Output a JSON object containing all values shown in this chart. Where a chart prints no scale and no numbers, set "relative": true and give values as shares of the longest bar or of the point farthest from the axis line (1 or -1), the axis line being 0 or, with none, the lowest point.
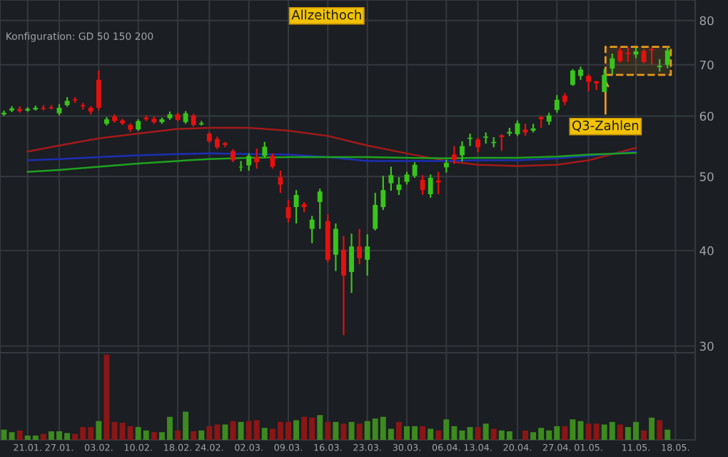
{
  "chart_data": [
    {
      "type": "candlestick",
      "categories": [
        null,
        null,
        null,
        "21.01.",
        null,
        null,
        null,
        "27.01.",
        null,
        null,
        null,
        null,
        "03.02.",
        null,
        null,
        null,
        null,
        "10.02.",
        null,
        null,
        null,
        null,
        "18.02.",
        null,
        null,
        null,
        "24.02.",
        null,
        null,
        null,
        null,
        "02.03.",
        null,
        null,
        null,
        null,
        "09.03.",
        null,
        null,
        null,
        null,
        "16.03.",
        null,
        null,
        null,
        null,
        "23.03.",
        null,
        null,
        null,
        null,
        "30.03.",
        null,
        null,
        null,
        null,
        "06.04.",
        null,
        null,
        null,
        "13.04.",
        null,
        null,
        null,
        null,
        "20.04.",
        null,
        null,
        null,
        null,
        "27.04.",
        null,
        null,
        null,
        "01.05.",
        null,
        null,
        null,
        null,
        null,
        "11.05.",
        null,
        null,
        null,
        null,
        "18.05.",
        null,
        null
      ],
      "ohlc": [
        [
          60.3,
          61.0,
          60.0,
          60.6
        ],
        [
          61.0,
          61.8,
          60.7,
          61.4
        ],
        [
          61.3,
          61.8,
          60.6,
          60.9
        ],
        [
          61.0,
          61.6,
          60.8,
          61.3
        ],
        [
          61.2,
          61.9,
          61.0,
          61.5
        ],
        [
          61.5,
          62.0,
          61.0,
          61.3
        ],
        [
          61.6,
          62.0,
          61.2,
          61.4
        ],
        [
          60.5,
          62.2,
          60.1,
          61.5
        ],
        [
          62.0,
          63.5,
          61.7,
          62.8
        ],
        [
          63.1,
          63.5,
          62.4,
          62.9
        ],
        [
          62.0,
          62.4,
          61.2,
          61.8
        ],
        [
          61.5,
          61.8,
          60.3,
          60.8
        ],
        [
          66.9,
          68.8,
          61.0,
          61.5
        ],
        [
          58.6,
          59.8,
          58.3,
          59.4
        ],
        [
          59.9,
          60.3,
          58.8,
          59.1
        ],
        [
          59.2,
          59.5,
          58.4,
          58.7
        ],
        [
          58.4,
          58.7,
          57.2,
          57.6
        ],
        [
          57.6,
          59.4,
          57.4,
          59.1
        ],
        [
          59.7,
          60.1,
          59.1,
          59.4
        ],
        [
          59.5,
          59.9,
          58.6,
          58.9
        ],
        [
          58.9,
          59.7,
          58.6,
          59.4
        ],
        [
          59.6,
          60.8,
          59.3,
          60.3
        ],
        [
          60.3,
          60.6,
          59.0,
          59.3
        ],
        [
          58.9,
          60.9,
          58.6,
          60.5
        ],
        [
          60.1,
          60.4,
          58.1,
          58.4
        ],
        [
          58.5,
          59.1,
          58.3,
          58.7
        ],
        [
          56.9,
          57.2,
          55.3,
          55.6
        ],
        [
          56.0,
          56.4,
          54.3,
          54.6
        ],
        [
          55.3,
          55.5,
          54.6,
          55.0
        ],
        [
          54.0,
          54.3,
          52.2,
          52.5
        ],
        [
          51.4,
          52.4,
          50.8,
          51.5
        ],
        [
          51.7,
          53.6,
          50.9,
          53.2
        ],
        [
          53.0,
          54.4,
          51.2,
          52.2
        ],
        [
          53.2,
          55.5,
          52.9,
          54.7
        ],
        [
          53.2,
          53.6,
          51.2,
          51.5
        ],
        [
          49.9,
          50.9,
          47.6,
          48.8
        ],
        [
          45.6,
          46.6,
          43.5,
          44.1
        ],
        [
          45.6,
          48.0,
          43.4,
          47.3
        ],
        [
          46.0,
          46.3,
          44.9,
          45.6
        ],
        [
          42.7,
          44.4,
          40.9,
          43.9
        ],
        [
          46.3,
          48.2,
          42.7,
          47.8
        ],
        [
          43.7,
          44.6,
          38.6,
          38.9
        ],
        [
          39.5,
          43.4,
          37.6,
          42.7
        ],
        [
          40.1,
          41.8,
          31.0,
          37.1
        ],
        [
          37.5,
          42.1,
          35.2,
          40.5
        ],
        [
          40.5,
          42.7,
          38.4,
          39.1
        ],
        [
          38.9,
          42.0,
          37.1,
          40.5
        ],
        [
          42.7,
          47.6,
          42.5,
          45.9
        ],
        [
          45.6,
          50.1,
          45.2,
          48.0
        ],
        [
          49.0,
          51.5,
          47.9,
          50.2
        ],
        [
          48.0,
          49.9,
          47.3,
          48.8
        ],
        [
          49.2,
          50.7,
          48.8,
          50.3
        ],
        [
          50.1,
          52.2,
          49.8,
          51.8
        ],
        [
          49.5,
          50.2,
          47.3,
          48.0
        ],
        [
          47.4,
          50.3,
          46.9,
          49.8
        ],
        [
          49.4,
          50.7,
          47.4,
          49.1
        ],
        [
          51.4,
          52.6,
          50.6,
          52.1
        ],
        [
          53.4,
          54.8,
          51.9,
          52.6
        ],
        [
          53.3,
          55.6,
          52.3,
          54.8
        ],
        [
          56.0,
          56.9,
          54.8,
          56.2
        ],
        [
          55.9,
          56.2,
          53.8,
          54.6
        ],
        [
          56.2,
          57.1,
          55.2,
          56.4
        ],
        [
          55.3,
          56.3,
          54.6,
          55.5
        ],
        [
          56.6,
          56.8,
          54.0,
          56.3
        ],
        [
          56.9,
          57.9,
          56.5,
          57.2
        ],
        [
          56.8,
          59.2,
          56.5,
          58.7
        ],
        [
          57.6,
          58.6,
          56.5,
          57.1
        ],
        [
          57.4,
          58.6,
          57.1,
          57.8
        ],
        [
          59.8,
          60.0,
          57.9,
          59.4
        ],
        [
          59.0,
          60.6,
          58.4,
          60.1
        ],
        [
          61.1,
          63.9,
          60.6,
          63.0
        ],
        [
          63.8,
          64.3,
          62.0,
          62.6
        ],
        [
          65.9,
          69.1,
          65.7,
          68.8
        ],
        [
          67.7,
          69.6,
          66.9,
          69.0
        ],
        [
          67.7,
          68.0,
          64.6,
          66.5
        ],
        [
          66.6,
          66.7,
          64.9,
          66.2
        ],
        [
          64.5,
          69.1,
          64.5,
          67.9
        ],
        [
          69.2,
          72.4,
          68.0,
          71.4
        ],
        [
          73.1,
          73.7,
          70.5,
          70.8
        ],
        [
          72.6,
          73.7,
          70.6,
          72.3
        ],
        [
          72.2,
          73.7,
          71.4,
          72.9
        ],
        [
          73.0,
          73.4,
          70.3,
          70.6
        ],
        [
          73.4,
          73.7,
          70.0,
          73.1
        ],
        [
          69.5,
          71.2,
          68.6,
          69.8
        ],
        [
          70.0,
          73.9,
          69.3,
          73.1
        ],
        null,
        null,
        null
      ],
      "colors": [
        "#39c41b",
        "#39c41b",
        "#e3110f",
        "#39c41b",
        "#39c41b",
        "#e3110f",
        "#e3110f",
        "#39c41b",
        "#39c41b",
        "#e3110f",
        "#e3110f",
        "#e3110f",
        "#e3110f",
        "#39c41b",
        "#e3110f",
        "#e3110f",
        "#e3110f",
        "#39c41b",
        "#e3110f",
        "#e3110f",
        "#39c41b",
        "#39c41b",
        "#e3110f",
        "#39c41b",
        "#e3110f",
        "#39c41b",
        "#e3110f",
        "#e3110f",
        "#e3110f",
        "#e3110f",
        "#39c41b",
        "#39c41b",
        "#e3110f",
        "#39c41b",
        "#e3110f",
        "#e3110f",
        "#e3110f",
        "#39c41b",
        "#e3110f",
        "#39c41b",
        "#39c41b",
        "#e3110f",
        "#39c41b",
        "#e3110f",
        "#39c41b",
        "#e3110f",
        "#39c41b",
        "#39c41b",
        "#39c41b",
        "#39c41b",
        "#39c41b",
        "#39c41b",
        "#39c41b",
        "#e3110f",
        "#39c41b",
        "#e3110f",
        "#39c41b",
        "#e3110f",
        "#39c41b",
        "#39c41b",
        "#e3110f",
        "#39c41b",
        "#39c41b",
        "#e3110f",
        "#39c41b",
        "#39c41b",
        "#e3110f",
        "#39c41b",
        "#e3110f",
        "#39c41b",
        "#39c41b",
        "#e3110f",
        "#39c41b",
        "#39c41b",
        "#e3110f",
        "#e3110f",
        "#39c41b",
        "#39c41b",
        "#e3110f",
        "#e3110f",
        "#39c41b",
        "#e3110f",
        "#e3110f",
        "#39c41b",
        "#39c41b",
        null,
        null,
        null
      ],
      "series": [
        {
          "type": "line",
          "color": "#a31a1a",
          "x": [
            "21.01.",
            "27.01.",
            "03.02.",
            "10.02.",
            "18.02.",
            "24.02.",
            "02.03.",
            "09.03.",
            "16.03.",
            "23.03.",
            "30.03.",
            "06.04.",
            "13.04.",
            "20.04.",
            "27.04.",
            "01.05.",
            "11.05."
          ],
          "values": [
            53.9,
            54.9,
            56.1,
            56.9,
            57.7,
            57.9,
            57.9,
            57.4,
            56.5,
            54.9,
            53.6,
            52.4,
            51.8,
            51.6,
            51.8,
            52.5,
            54.5
          ]
        },
        {
          "type": "line",
          "color": "#1c2fb4",
          "x": [
            "21.01.",
            "27.01.",
            "03.02.",
            "10.02.",
            "18.02.",
            "24.02.",
            "02.03.",
            "09.03.",
            "16.03.",
            "23.03.",
            "30.03.",
            "06.04.",
            "13.04.",
            "20.04.",
            "27.04.",
            "01.05.",
            "11.05."
          ],
          "values": [
            52.5,
            52.7,
            53.0,
            53.3,
            53.5,
            53.6,
            53.5,
            53.4,
            53.0,
            52.4,
            52.4,
            52.4,
            52.5,
            52.5,
            52.8,
            53.2,
            53.9
          ]
        },
        {
          "type": "line",
          "color": "#1fa31f",
          "x": [
            "21.01.",
            "27.01.",
            "03.02.",
            "10.02.",
            "18.02.",
            "24.02.",
            "02.03.",
            "09.03.",
            "16.03.",
            "23.03.",
            "30.03.",
            "06.04.",
            "13.04.",
            "20.04.",
            "27.04.",
            "01.05.",
            "11.05."
          ],
          "values": [
            50.7,
            51.0,
            51.5,
            52.0,
            52.4,
            52.7,
            52.9,
            53.0,
            53.0,
            53.0,
            52.9,
            52.8,
            52.9,
            52.9,
            53.1,
            53.4,
            53.7
          ]
        }
      ],
      "log": "y",
      "ylim": [
        29.4,
        85.1
      ],
      "yticks": [
        30,
        40,
        50,
        60,
        70,
        80
      ],
      "tick_labels": "y",
      "grid": true,
      "bands": [
        {
          "axis": "y",
          "from": 67.9,
          "to": 73.9,
          "color": "#e89a1c"
        }
      ],
      "annotations": [
        "Konfiguration: GD 50 150 200",
        "Allzeithoch",
        "Q3-Zahlen"
      ]
    },
    {
      "type": "bar",
      "relative": true,
      "categories": [
        null,
        null,
        null,
        "21.01.",
        null,
        null,
        null,
        "27.01.",
        null,
        null,
        null,
        null,
        "03.02.",
        null,
        null,
        null,
        null,
        "10.02.",
        null,
        null,
        null,
        null,
        "18.02.",
        null,
        null,
        null,
        "24.02.",
        null,
        null,
        null,
        null,
        "02.03.",
        null,
        null,
        null,
        null,
        "09.03.",
        null,
        null,
        null,
        null,
        "16.03.",
        null,
        null,
        null,
        null,
        "23.03.",
        null,
        null,
        null,
        null,
        "30.03.",
        null,
        null,
        null,
        null,
        "06.04.",
        null,
        null,
        null,
        "13.04.",
        null,
        null,
        null,
        null,
        "20.04.",
        null,
        null,
        null,
        null,
        "27.04.",
        null,
        null,
        null,
        "01.05.",
        null,
        null,
        null,
        null,
        null,
        "11.05.",
        null,
        null,
        null,
        null,
        "18.05.",
        null,
        null
      ],
      "values": [
        0.12,
        0.09,
        0.11,
        0.05,
        0.05,
        0.07,
        0.1,
        0.1,
        0.08,
        0.07,
        0.15,
        0.15,
        0.22,
        1,
        0.21,
        0.2,
        0.16,
        0.15,
        0.11,
        0.09,
        0.09,
        0.27,
        0.11,
        0.33,
        0.1,
        0.11,
        0.16,
        0.18,
        0.18,
        0.22,
        0.21,
        0.22,
        0.23,
        0.14,
        0.13,
        0.21,
        0.21,
        0.23,
        0.27,
        0.26,
        0.29,
        0.21,
        0.21,
        0.19,
        0.21,
        0.19,
        0.22,
        0.25,
        0.27,
        0.13,
        0.21,
        0.16,
        0.16,
        0.16,
        0.13,
        0.11,
        0.24,
        0.16,
        0.11,
        0.15,
        0.15,
        0.19,
        0.13,
        0.11,
        0.1,
        null,
        0.11,
        0.09,
        0.14,
        0.11,
        0.16,
        0.16,
        0.24,
        0.22,
        0.19,
        0.19,
        0.18,
        0.21,
        0.18,
        0.15,
        0.21,
        0.11,
        0.26,
        0.23,
        0.12,
        null,
        null,
        null
      ],
      "colors": [
        "#3d8a1f",
        "#3d8a1f",
        "#8a1616",
        "#3d8a1f",
        "#3d8a1f",
        "#8a1616",
        "#3d8a1f",
        "#3d8a1f",
        "#3d8a1f",
        "#8a1616",
        "#8a1616",
        "#8a1616",
        "#3d8a1f",
        "#8a1616",
        "#8a1616",
        "#8a1616",
        "#8a1616",
        "#3d8a1f",
        "#3d8a1f",
        "#8a1616",
        "#3d8a1f",
        "#3d8a1f",
        "#8a1616",
        "#3d8a1f",
        "#8a1616",
        "#3d8a1f",
        "#8a1616",
        "#8a1616",
        "#3d8a1f",
        "#8a1616",
        "#3d8a1f",
        "#8a1616",
        "#8a1616",
        "#3d8a1f",
        "#8a1616",
        "#8a1616",
        "#8a1616",
        "#3d8a1f",
        "#8a1616",
        "#8a1616",
        "#3d8a1f",
        "#8a1616",
        "#3d8a1f",
        "#8a1616",
        "#3d8a1f",
        "#8a1616",
        "#3d8a1f",
        "#3d8a1f",
        "#3d8a1f",
        "#3d8a1f",
        "#8a1616",
        "#3d8a1f",
        "#3d8a1f",
        "#8a1616",
        "#3d8a1f",
        "#8a1616",
        "#3d8a1f",
        "#3d8a1f",
        "#3d8a1f",
        "#3d8a1f",
        "#8a1616",
        "#3d8a1f",
        "#8a1616",
        "#3d8a1f",
        "#3d8a1f",
        "#3d8a1f",
        "#8a1616",
        "#3d8a1f",
        "#3d8a1f",
        "#3d8a1f",
        "#3d8a1f",
        "#8a1616",
        "#3d8a1f",
        "#3d8a1f",
        "#8a1616",
        "#8a1616",
        "#3d8a1f",
        "#3d8a1f",
        "#8a1616",
        "#3d8a1f",
        "#3d8a1f",
        "#8a1616",
        "#3d8a1f",
        "#8a1616",
        "#3d8a1f",
        null,
        null,
        null
      ],
      "tick_labels": "x",
      "grid": "x"
    }
  ]
}
